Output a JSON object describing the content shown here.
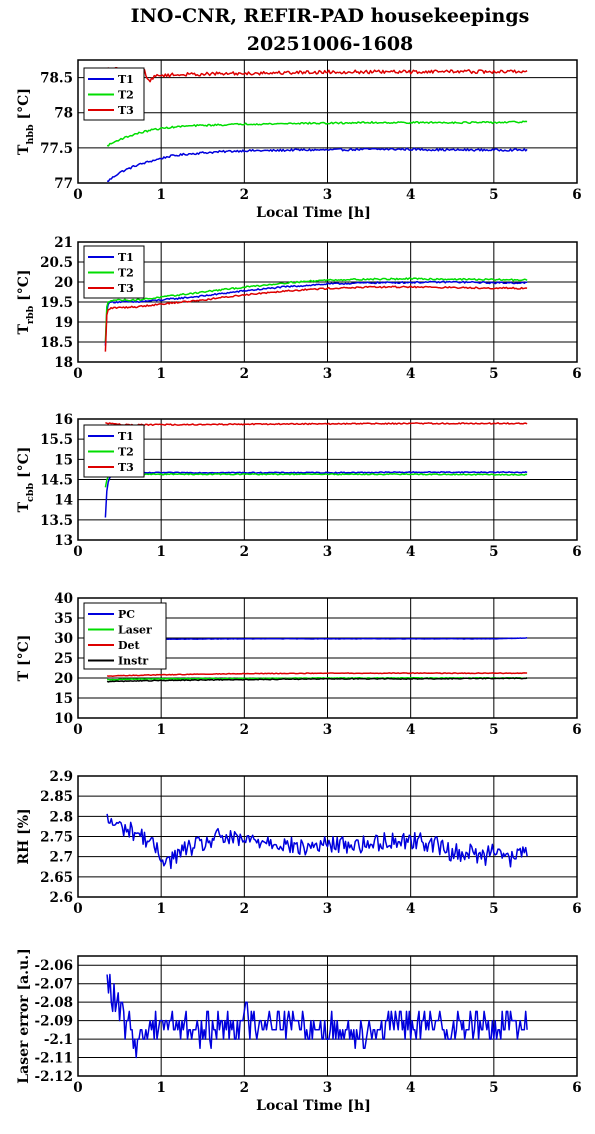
{
  "title": [
    "INO-CNR, REFIR-PAD housekeepings",
    "20251006-1608"
  ],
  "colors": {
    "blue": "#0000dd",
    "green": "#00dd00",
    "red": "#dd0000",
    "black": "#000000"
  },
  "chart_data": [
    {
      "type": "line",
      "ylabel": {
        "main": "T",
        "sub": "hbb",
        "unit": " [°C]"
      },
      "xlabel": "Local Time [h]",
      "xlim": [
        0,
        6
      ],
      "ylim": [
        77,
        78.75
      ],
      "xticks": [
        "0",
        "1",
        "2",
        "3",
        "4",
        "5",
        "6"
      ],
      "yticks": [
        "77",
        "77.5",
        "78",
        "78.5"
      ],
      "legend": [
        "T1",
        "T2",
        "T3"
      ],
      "series": [
        {
          "name": "T1",
          "color": "blue",
          "x": [
            0.35,
            0.5,
            0.7,
            0.9,
            1.1,
            1.3,
            1.5,
            1.8,
            2.0,
            2.3,
            2.6,
            3.0,
            3.5,
            4.0,
            4.5,
            5.0,
            5.4
          ],
          "y": [
            77.02,
            77.15,
            77.25,
            77.32,
            77.38,
            77.41,
            77.43,
            77.45,
            77.46,
            77.46,
            77.47,
            77.47,
            77.48,
            77.48,
            77.47,
            77.47,
            77.47
          ],
          "noise": 0.015
        },
        {
          "name": "T2",
          "color": "green",
          "x": [
            0.35,
            0.5,
            0.7,
            0.9,
            1.1,
            1.3,
            1.5,
            1.8,
            2.0,
            2.3,
            2.6,
            3.0,
            3.5,
            4.0,
            4.5,
            5.0,
            5.4
          ],
          "y": [
            77.53,
            77.62,
            77.7,
            77.76,
            77.79,
            77.81,
            77.82,
            77.83,
            77.84,
            77.84,
            77.85,
            77.85,
            77.86,
            77.86,
            77.86,
            77.86,
            77.87
          ],
          "noise": 0.012
        },
        {
          "name": "T3",
          "color": "red",
          "x": [
            0.35,
            0.8,
            0.85,
            0.95,
            1.2,
            1.5,
            2.0,
            2.5,
            3.0,
            3.5,
            4.0,
            4.5,
            5.0,
            5.4
          ],
          "y": [
            78.62,
            78.6,
            78.45,
            78.53,
            78.54,
            78.55,
            78.56,
            78.57,
            78.58,
            78.58,
            78.58,
            78.59,
            78.58,
            78.59
          ],
          "noise": 0.025
        }
      ]
    },
    {
      "type": "line",
      "ylabel": {
        "main": "T",
        "sub": "rbb",
        "unit": " [°C]"
      },
      "xlim": [
        0,
        6
      ],
      "ylim": [
        18,
        21
      ],
      "xticks": [
        "0",
        "1",
        "2",
        "3",
        "4",
        "5",
        "6"
      ],
      "yticks": [
        "18",
        "18.5",
        "19",
        "19.5",
        "20",
        "20.5",
        "21"
      ],
      "legend": [
        "T1",
        "T2",
        "T3"
      ],
      "series": [
        {
          "name": "T1",
          "color": "blue",
          "x": [
            0.33,
            0.34,
            0.36,
            0.4,
            0.7,
            1.0,
            1.5,
            2.0,
            2.5,
            3.0,
            3.5,
            4.0,
            4.5,
            5.0,
            5.4
          ],
          "y": [
            18.4,
            19.2,
            19.45,
            19.5,
            19.5,
            19.55,
            19.65,
            19.78,
            19.88,
            19.95,
            19.98,
            19.99,
            20.0,
            19.98,
            19.98
          ],
          "noise": 0.02
        },
        {
          "name": "T2",
          "color": "green",
          "x": [
            0.33,
            0.34,
            0.36,
            0.4,
            0.7,
            1.0,
            1.5,
            2.0,
            2.5,
            3.0,
            3.5,
            4.0,
            4.5,
            5.0,
            5.4
          ],
          "y": [
            18.5,
            19.3,
            19.5,
            19.55,
            19.55,
            19.62,
            19.75,
            19.87,
            19.98,
            20.05,
            20.07,
            20.08,
            20.07,
            20.06,
            20.05
          ],
          "noise": 0.02
        },
        {
          "name": "T3",
          "color": "red",
          "x": [
            0.33,
            0.34,
            0.36,
            0.4,
            0.7,
            1.0,
            1.5,
            2.0,
            2.5,
            3.0,
            3.5,
            4.0,
            4.5,
            5.0,
            5.4
          ],
          "y": [
            18.25,
            19.1,
            19.3,
            19.35,
            19.38,
            19.45,
            19.55,
            19.68,
            19.78,
            19.84,
            19.87,
            19.88,
            19.86,
            19.85,
            19.84
          ],
          "noise": 0.02
        }
      ]
    },
    {
      "type": "line",
      "ylabel": {
        "main": "T",
        "sub": "cbb",
        "unit": " [°C]"
      },
      "xlim": [
        0,
        6
      ],
      "ylim": [
        13,
        16
      ],
      "xticks": [
        "0",
        "1",
        "2",
        "3",
        "4",
        "5",
        "6"
      ],
      "yticks": [
        "13",
        "13.5",
        "14",
        "14.5",
        "15",
        "15.5",
        "16"
      ],
      "legend": [
        "T1",
        "T2",
        "T3"
      ],
      "series": [
        {
          "name": "T1",
          "color": "blue",
          "x": [
            0.33,
            0.34,
            0.35,
            0.37,
            0.4,
            0.7,
            1.0,
            2.0,
            3.0,
            4.0,
            5.0,
            5.4
          ],
          "y": [
            13.55,
            14.0,
            14.3,
            14.5,
            14.6,
            14.66,
            14.67,
            14.67,
            14.67,
            14.68,
            14.68,
            14.68
          ],
          "noise": 0.012
        },
        {
          "name": "T2",
          "color": "green",
          "x": [
            0.33,
            0.34,
            0.35,
            0.37,
            0.4,
            0.7,
            1.0,
            2.0,
            3.0,
            4.0,
            5.0,
            5.4
          ],
          "y": [
            14.3,
            14.45,
            14.5,
            14.6,
            14.6,
            14.63,
            14.63,
            14.63,
            14.63,
            14.63,
            14.62,
            14.62
          ],
          "noise": 0.012
        },
        {
          "name": "T3",
          "color": "red",
          "x": [
            0.33,
            0.6,
            1.0,
            2.0,
            3.0,
            4.0,
            5.0,
            5.4
          ],
          "y": [
            15.9,
            15.85,
            15.86,
            15.87,
            15.88,
            15.89,
            15.89,
            15.89
          ],
          "noise": 0.015
        }
      ]
    },
    {
      "type": "line",
      "ylabel": {
        "main": "T",
        "sub": "",
        "unit": " [°C]"
      },
      "xlim": [
        0,
        6
      ],
      "ylim": [
        10,
        40
      ],
      "xticks": [
        "0",
        "1",
        "2",
        "3",
        "4",
        "5",
        "6"
      ],
      "yticks": [
        "10",
        "15",
        "20",
        "25",
        "30",
        "35",
        "40"
      ],
      "legend": [
        "PC",
        "Laser",
        "Det",
        "Instr"
      ],
      "series": [
        {
          "name": "PC",
          "color": "blue",
          "x": [
            0.35,
            0.5,
            1.0,
            2.0,
            3.0,
            4.0,
            5.0,
            5.4
          ],
          "y": [
            29.6,
            29.6,
            29.7,
            29.8,
            29.8,
            29.8,
            29.8,
            30.0
          ],
          "noise": 0.05
        },
        {
          "name": "Laser",
          "color": "green",
          "x": [
            0.35,
            1.0,
            2.0,
            3.0,
            4.0,
            5.0,
            5.4
          ],
          "y": [
            19.6,
            19.8,
            19.9,
            20.0,
            20.0,
            20.0,
            20.0
          ],
          "noise": 0.08
        },
        {
          "name": "Det",
          "color": "red",
          "x": [
            0.35,
            1.0,
            2.0,
            3.0,
            4.0,
            5.0,
            5.4
          ],
          "y": [
            20.5,
            20.8,
            21.1,
            21.2,
            21.2,
            21.2,
            21.2
          ],
          "noise": 0.08
        },
        {
          "name": "Instr",
          "color": "black",
          "x": [
            0.35,
            1.0,
            2.0,
            3.0,
            4.0,
            5.0,
            5.4
          ],
          "y": [
            19.1,
            19.4,
            19.6,
            19.8,
            19.8,
            19.9,
            19.9
          ],
          "noise": 0.1
        }
      ]
    },
    {
      "type": "line",
      "ylabel": {
        "main": "RH [%]",
        "sub": "",
        "unit": ""
      },
      "xlim": [
        0,
        6
      ],
      "ylim": [
        2.6,
        2.9
      ],
      "xticks": [
        "0",
        "1",
        "2",
        "3",
        "4",
        "5",
        "6"
      ],
      "yticks": [
        "2.6",
        "2.65",
        "2.7",
        "2.75",
        "2.8",
        "2.85",
        "2.9"
      ],
      "legend": [],
      "series": [
        {
          "name": "",
          "color": "blue",
          "x": [
            0.35,
            0.45,
            0.55,
            0.7,
            0.85,
            1.0,
            1.1,
            1.3,
            1.5,
            1.7,
            1.9,
            2.1,
            2.3,
            2.5,
            2.7,
            2.9,
            3.1,
            3.3,
            3.5,
            3.7,
            3.9,
            4.1,
            4.3,
            4.5,
            4.7,
            4.9,
            5.0,
            5.2,
            5.4
          ],
          "y": [
            2.79,
            2.78,
            2.77,
            2.76,
            2.74,
            2.7,
            2.69,
            2.72,
            2.73,
            2.75,
            2.74,
            2.74,
            2.74,
            2.73,
            2.72,
            2.73,
            2.73,
            2.73,
            2.73,
            2.74,
            2.74,
            2.74,
            2.73,
            2.71,
            2.71,
            2.7,
            2.73,
            2.69,
            2.72
          ],
          "noise": 0.022
        }
      ]
    },
    {
      "type": "line",
      "ylabel": {
        "main": "Laser error [a.u.]",
        "sub": "",
        "unit": ""
      },
      "xlabel": "Local Time [h]",
      "xlim": [
        0,
        6
      ],
      "ylim": [
        -2.12,
        -2.055
      ],
      "xticks": [
        "0",
        "1",
        "2",
        "3",
        "4",
        "5",
        "6"
      ],
      "yticks": [
        "-2.12",
        "-2.11",
        "-2.1",
        "-2.09",
        "-2.08",
        "-2.07",
        "-2.06"
      ],
      "legend": [],
      "series": [
        {
          "name": "",
          "color": "blue",
          "x": [
            0.35,
            0.5,
            0.7,
            1.0,
            1.5,
            2.0,
            2.5,
            3.0,
            3.5,
            4.0,
            4.5,
            5.0,
            5.4
          ],
          "y": [
            -2.07,
            -2.085,
            -2.1,
            -2.09,
            -2.095,
            -2.09,
            -2.09,
            -2.095,
            -2.095,
            -2.092,
            -2.093,
            -2.093,
            -2.09
          ],
          "noise": 0.009,
          "step": 0.005
        }
      ]
    }
  ]
}
